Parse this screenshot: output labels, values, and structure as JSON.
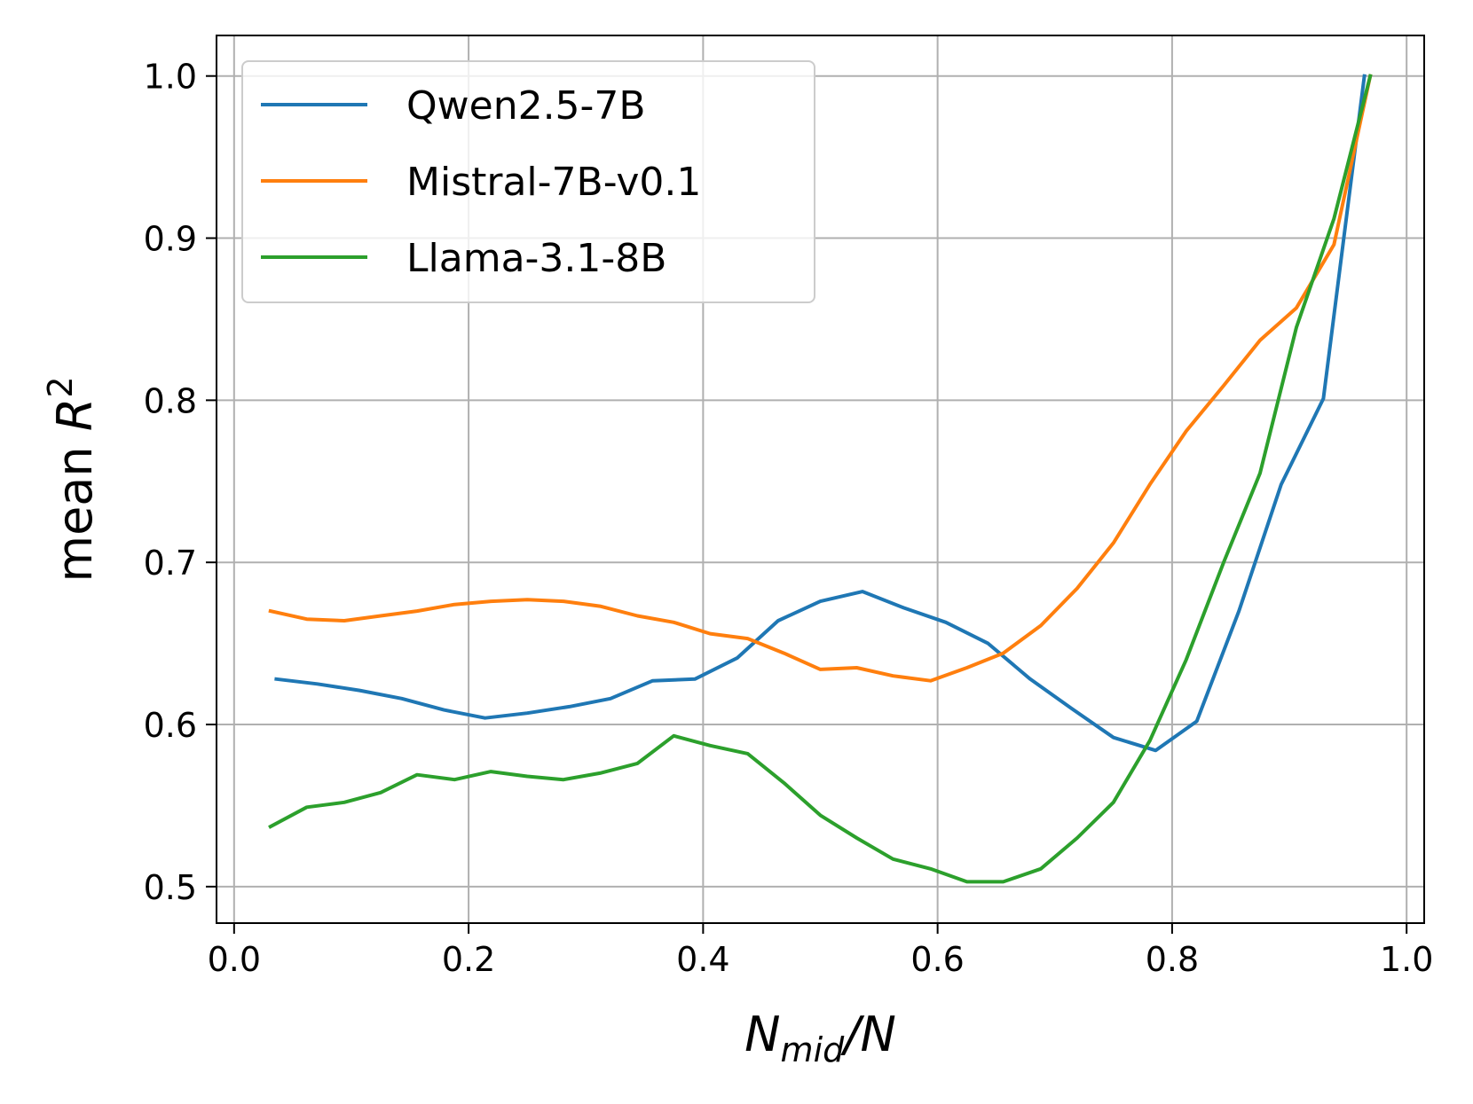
{
  "chart_data": {
    "type": "line",
    "xlabel": {
      "main": "N",
      "sub": "mid",
      "suffix": "/N"
    },
    "ylabel": {
      "main": "mean ",
      "var": "R",
      "sup": "2"
    },
    "xlim": [
      -0.015,
      1.015
    ],
    "ylim": [
      0.4775,
      1.025
    ],
    "xticks": [
      0.0,
      0.2,
      0.4,
      0.6,
      0.8,
      1.0
    ],
    "yticks": [
      0.5,
      0.6,
      0.7,
      0.8,
      0.9,
      1.0
    ],
    "xtick_labels": [
      "0.0",
      "0.2",
      "0.4",
      "0.6",
      "0.8",
      "1.0"
    ],
    "ytick_labels": [
      "0.5",
      "0.6",
      "0.7",
      "0.8",
      "0.9",
      "1.0"
    ],
    "grid": true,
    "legend_position": "top-left",
    "series": [
      {
        "name": "Qwen2.5-7B",
        "color": "#1f77b4",
        "x": [
          0.036,
          0.071,
          0.107,
          0.143,
          0.179,
          0.214,
          0.25,
          0.286,
          0.321,
          0.357,
          0.393,
          0.429,
          0.464,
          0.5,
          0.536,
          0.571,
          0.607,
          0.643,
          0.679,
          0.714,
          0.75,
          0.786,
          0.821,
          0.857,
          0.893,
          0.929,
          0.964
        ],
        "y": [
          0.628,
          0.625,
          0.621,
          0.616,
          0.609,
          0.604,
          0.607,
          0.611,
          0.616,
          0.627,
          0.628,
          0.641,
          0.664,
          0.676,
          0.682,
          0.672,
          0.663,
          0.65,
          0.628,
          0.61,
          0.592,
          0.584,
          0.602,
          0.67,
          0.748,
          0.801,
          1.0
        ]
      },
      {
        "name": "Mistral-7B-v0.1",
        "color": "#ff7f0e",
        "x": [
          0.031,
          0.062,
          0.094,
          0.125,
          0.156,
          0.188,
          0.219,
          0.25,
          0.281,
          0.312,
          0.344,
          0.375,
          0.406,
          0.438,
          0.469,
          0.5,
          0.531,
          0.562,
          0.594,
          0.625,
          0.656,
          0.688,
          0.719,
          0.75,
          0.781,
          0.812,
          0.844,
          0.875,
          0.906,
          0.938,
          0.969
        ],
        "y": [
          0.67,
          0.665,
          0.664,
          0.667,
          0.67,
          0.674,
          0.676,
          0.677,
          0.676,
          0.673,
          0.667,
          0.663,
          0.656,
          0.653,
          0.644,
          0.634,
          0.635,
          0.63,
          0.627,
          0.635,
          0.644,
          0.661,
          0.684,
          0.712,
          0.748,
          0.781,
          0.809,
          0.837,
          0.857,
          0.896,
          1.0
        ]
      },
      {
        "name": "Llama-3.1-8B",
        "color": "#2ca02c",
        "x": [
          0.031,
          0.062,
          0.094,
          0.125,
          0.156,
          0.188,
          0.219,
          0.25,
          0.281,
          0.312,
          0.344,
          0.375,
          0.406,
          0.438,
          0.469,
          0.5,
          0.531,
          0.562,
          0.594,
          0.625,
          0.656,
          0.688,
          0.719,
          0.75,
          0.781,
          0.812,
          0.844,
          0.875,
          0.906,
          0.938,
          0.969
        ],
        "y": [
          0.537,
          0.549,
          0.552,
          0.558,
          0.569,
          0.566,
          0.571,
          0.568,
          0.566,
          0.57,
          0.576,
          0.593,
          0.587,
          0.582,
          0.564,
          0.544,
          0.53,
          0.517,
          0.511,
          0.503,
          0.503,
          0.511,
          0.53,
          0.552,
          0.59,
          0.64,
          0.7,
          0.755,
          0.845,
          0.912,
          1.0
        ]
      }
    ]
  }
}
